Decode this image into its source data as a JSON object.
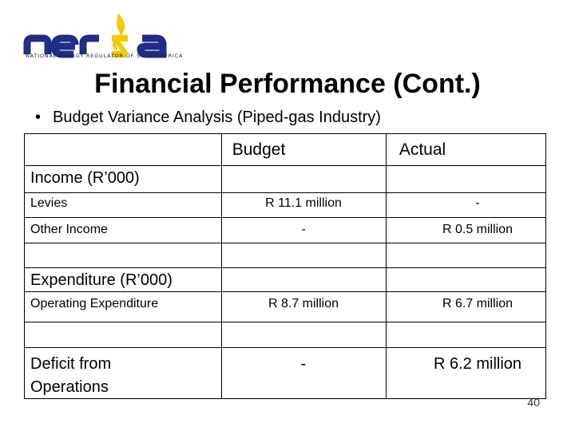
{
  "logo": {
    "text": "nersa",
    "caption": "NATIONAL ENERGY REGULATOR OF SOUTH AFRICA",
    "colors": {
      "text": "#1f2d86",
      "accent": "#f5c800"
    }
  },
  "title": "Financial Performance (Cont.)",
  "bullet": "Budget Variance Analysis (Piped-gas Industry)",
  "table": {
    "headers": {
      "budget": "Budget",
      "actual": "Actual"
    },
    "income_heading": "Income (R’000)",
    "levies": {
      "label": "Levies",
      "budget": "R 11.1 million",
      "actual": "-"
    },
    "other_income": {
      "label": "Other Income",
      "budget": "-",
      "actual": "R 0.5 million"
    },
    "expenditure_heading": "Expenditure (R’000)",
    "operating_expenditure": {
      "label": "Operating Expenditure",
      "budget": "R 8.7 million",
      "actual": "R 6.7 million"
    },
    "deficit": {
      "label_line1": "Deficit from",
      "label_line2": "Operations",
      "budget": "-",
      "actual": "R 6.2 million"
    }
  },
  "page_number": "40"
}
